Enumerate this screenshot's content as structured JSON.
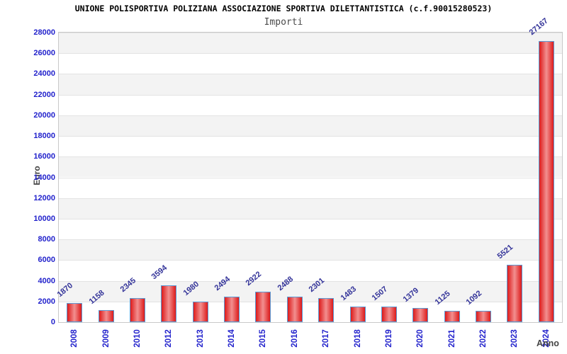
{
  "chart_data": {
    "type": "bar",
    "title": "UNIONE POLISPORTIVA POLIZIANA ASSOCIAZIONE SPORTIVA DILETTANTISTICA (c.f.90015280523)",
    "subtitle": "Importi",
    "xlabel": "Anno",
    "ylabel": "Euro",
    "categories": [
      "2008",
      "2009",
      "2010",
      "2012",
      "2013",
      "2014",
      "2015",
      "2016",
      "2017",
      "2018",
      "2019",
      "2020",
      "2021",
      "2022",
      "2023",
      "2024"
    ],
    "values": [
      1870,
      1158,
      2345,
      3594,
      1980,
      2494,
      2922,
      2488,
      2301,
      1483,
      1507,
      1379,
      1125,
      1092,
      5521,
      27167
    ],
    "ylim": [
      0,
      28000
    ],
    "ytick_step": 2000,
    "grid": "horizontal-alternating-bands-every-2000",
    "legend": "none",
    "colors": {
      "tick_label": "#2222cc",
      "value_label": "#333399",
      "bar_edge": "#dd1a1a",
      "bar_center": "#f29090",
      "bar_border": "#5b9bd5",
      "band_gray": "#f3f3f3",
      "band_white": "#ffffff",
      "grid_line": "#e3e3e3",
      "plot_border": "#c9c9c9",
      "title": "#000000",
      "subtitle": "#4a4a4a",
      "axis_title": "#444444"
    }
  }
}
